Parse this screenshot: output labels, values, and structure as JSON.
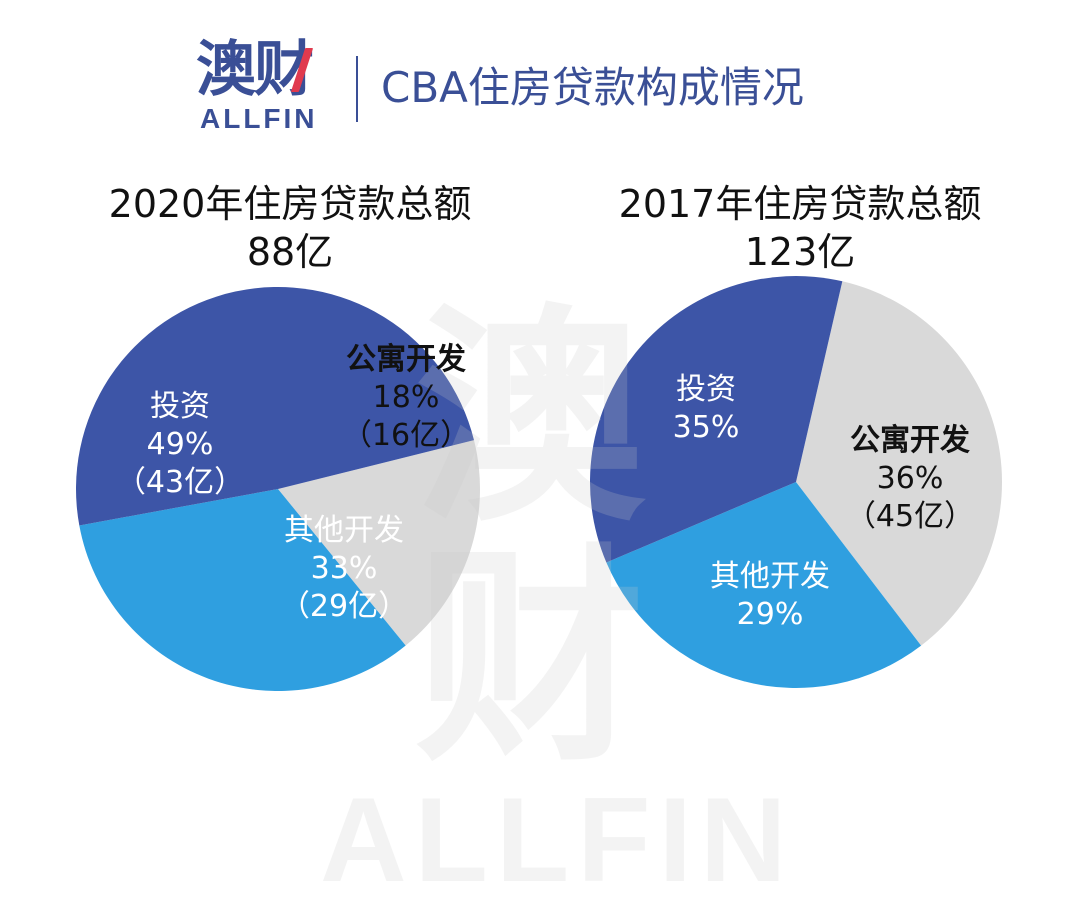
{
  "logo": {
    "brand_cn": "澳财",
    "brand_en": "ALLFIN"
  },
  "title": "CBA住房贷款构成情况",
  "colors": {
    "investment": "#3d55a7",
    "apartment": "#d9d9d9",
    "other": "#2f9fe0",
    "brand": "#3a4f96"
  },
  "chart_data": [
    {
      "type": "pie",
      "title": "2020年住房贷款总额",
      "total": "88亿",
      "slices": [
        {
          "category": "投资",
          "value": 49,
          "percent_label": "49%",
          "amount_label": "（43亿）"
        },
        {
          "category": "公寓开发",
          "value": 18,
          "percent_label": "18%",
          "amount_label": "（16亿）"
        },
        {
          "category": "其他开发",
          "value": 33,
          "percent_label": "33%",
          "amount_label": "（29亿）"
        }
      ]
    },
    {
      "type": "pie",
      "title": "2017年住房贷款总额",
      "total": "123亿",
      "slices": [
        {
          "category": "投资",
          "value": 35,
          "percent_label": "35%",
          "amount_label": ""
        },
        {
          "category": "公寓开发",
          "value": 36,
          "percent_label": "36%",
          "amount_label": "（45亿）"
        },
        {
          "category": "其他开发",
          "value": 29,
          "percent_label": "29%",
          "amount_label": ""
        }
      ]
    }
  ]
}
